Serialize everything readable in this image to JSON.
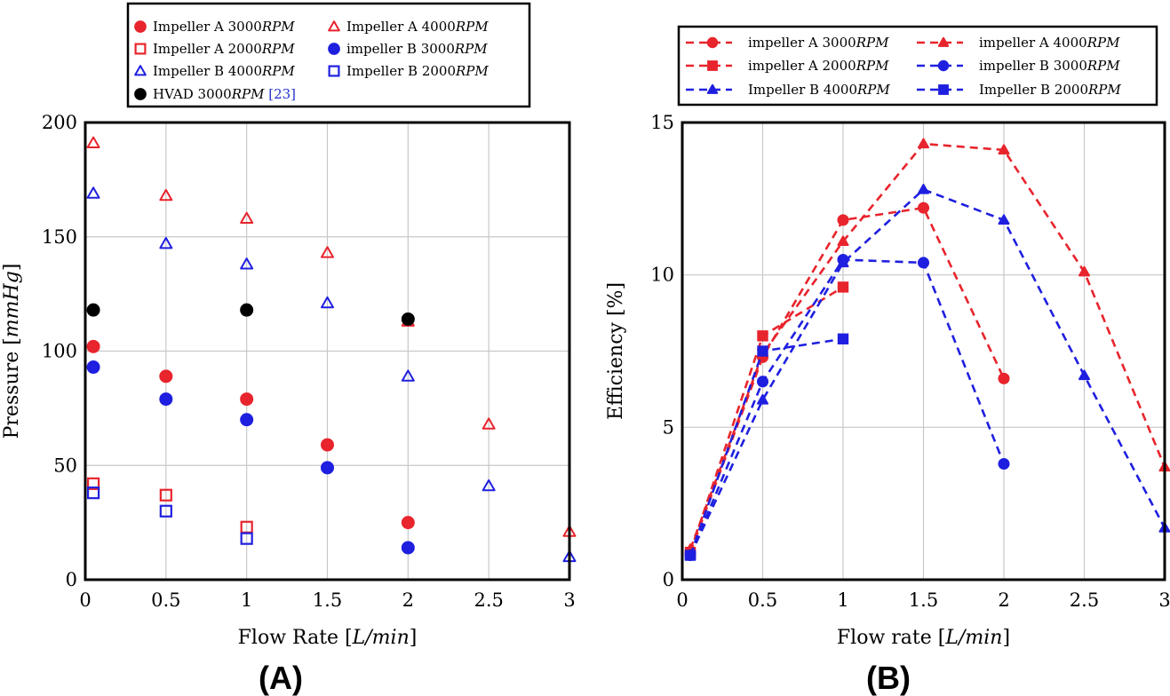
{
  "colors": {
    "red": "#e8242c",
    "blue": "#1f1fe0",
    "black": "#000000"
  },
  "chart_data": [
    {
      "type": "scatter",
      "panel_label": "(A)",
      "xlabel_prefix": "Flow Rate [",
      "xlabel_unit": "L/min",
      "xlabel_suffix": "]",
      "ylabel_prefix": "Pressure [",
      "ylabel_unit": "mmHg",
      "ylabel_suffix": "]",
      "xlim": [
        0,
        3
      ],
      "ylim": [
        0,
        200
      ],
      "xticks": [
        "0",
        "0.5",
        "1",
        "1.5",
        "2",
        "2.5",
        "3"
      ],
      "yticks": [
        "0",
        "50",
        "100",
        "150",
        "200"
      ],
      "grid": true,
      "legend_position": "top",
      "series": [
        {
          "name": "Impeller A 3000",
          "unit": "RPM",
          "marker": "circle",
          "color": "red",
          "points": [
            [
              0.05,
              102
            ],
            [
              0.5,
              89
            ],
            [
              1,
              79
            ],
            [
              1.5,
              59
            ],
            [
              2,
              25
            ]
          ]
        },
        {
          "name": "Impeller A 4000",
          "unit": "RPM",
          "marker": "triangle",
          "color": "red",
          "points": [
            [
              0.05,
              191
            ],
            [
              0.5,
              168
            ],
            [
              1,
              158
            ],
            [
              1.5,
              143
            ],
            [
              2,
              113
            ],
            [
              2.5,
              68
            ],
            [
              3,
              21
            ]
          ]
        },
        {
          "name": "Impeller A 2000",
          "unit": "RPM",
          "marker": "square",
          "color": "red",
          "points": [
            [
              0.05,
              42
            ],
            [
              0.5,
              37
            ],
            [
              1,
              23
            ]
          ]
        },
        {
          "name": "impeller B 3000",
          "unit": "RPM",
          "marker": "circle",
          "color": "blue",
          "points": [
            [
              0.05,
              93
            ],
            [
              0.5,
              79
            ],
            [
              1,
              70
            ],
            [
              1.5,
              49
            ],
            [
              2,
              14
            ]
          ]
        },
        {
          "name": "Impeller B 4000",
          "unit": "RPM",
          "marker": "triangle",
          "color": "blue",
          "points": [
            [
              0.05,
              169
            ],
            [
              0.5,
              147
            ],
            [
              1,
              138
            ],
            [
              1.5,
              121
            ],
            [
              2,
              89
            ],
            [
              2.5,
              41
            ],
            [
              3,
              10
            ]
          ]
        },
        {
          "name": "Impeller B 2000",
          "unit": "RPM",
          "marker": "square",
          "color": "blue",
          "points": [
            [
              0.05,
              38
            ],
            [
              0.5,
              30
            ],
            [
              1,
              18
            ]
          ]
        },
        {
          "name": "HVAD 3000",
          "unit": "RPM",
          "ref": "[23]",
          "marker": "circle",
          "color": "black",
          "points": [
            [
              0.05,
              118
            ],
            [
              1,
              118
            ],
            [
              2,
              114
            ]
          ]
        }
      ]
    },
    {
      "type": "line",
      "panel_label": "(B)",
      "xlabel_prefix": "Flow rate [",
      "xlabel_unit": "L/min",
      "xlabel_suffix": "]",
      "ylabel_prefix": "Efficiency [%]",
      "ylabel_unit": "",
      "ylabel_suffix": "",
      "xlim": [
        0,
        3
      ],
      "ylim": [
        0,
        15
      ],
      "xticks": [
        "0",
        "0.5",
        "1",
        "1.5",
        "2",
        "2.5",
        "3"
      ],
      "yticks": [
        "0",
        "5",
        "10",
        "15"
      ],
      "grid": true,
      "legend_position": "top",
      "series": [
        {
          "name": "impeller A 3000",
          "unit": "RPM",
          "marker": "circle",
          "color": "red",
          "points": [
            [
              0.05,
              0.9
            ],
            [
              0.5,
              7.3
            ],
            [
              1,
              11.8
            ],
            [
              1.5,
              12.2
            ],
            [
              2,
              6.6
            ]
          ]
        },
        {
          "name": "impeller A 4000",
          "unit": "RPM",
          "marker": "triangle",
          "color": "red",
          "points": [
            [
              0.05,
              1.0
            ],
            [
              0.5,
              7.4
            ],
            [
              1,
              11.1
            ],
            [
              1.5,
              14.3
            ],
            [
              2,
              14.1
            ],
            [
              2.5,
              10.1
            ],
            [
              3,
              3.7
            ]
          ]
        },
        {
          "name": "impeller A 2000",
          "unit": "RPM",
          "marker": "square",
          "color": "red",
          "points": [
            [
              0.05,
              0.9
            ],
            [
              0.5,
              8.0
            ],
            [
              1,
              9.6
            ]
          ]
        },
        {
          "name": "impeller B 3000",
          "unit": "RPM",
          "marker": "circle",
          "color": "blue",
          "points": [
            [
              0.05,
              0.8
            ],
            [
              0.5,
              6.5
            ],
            [
              1,
              10.5
            ],
            [
              1.5,
              10.4
            ],
            [
              2,
              3.8
            ]
          ]
        },
        {
          "name": "Impeller B 4000",
          "unit": "RPM",
          "marker": "triangle",
          "color": "blue",
          "points": [
            [
              0.05,
              0.8
            ],
            [
              0.5,
              5.9
            ],
            [
              1,
              10.4
            ],
            [
              1.5,
              12.8
            ],
            [
              2,
              11.8
            ],
            [
              2.5,
              6.7
            ],
            [
              3,
              1.7
            ]
          ]
        },
        {
          "name": "Impeller B 2000",
          "unit": "RPM",
          "marker": "square",
          "color": "blue",
          "points": [
            [
              0.05,
              0.8
            ],
            [
              0.5,
              7.5
            ],
            [
              1,
              7.9
            ]
          ]
        }
      ]
    }
  ]
}
